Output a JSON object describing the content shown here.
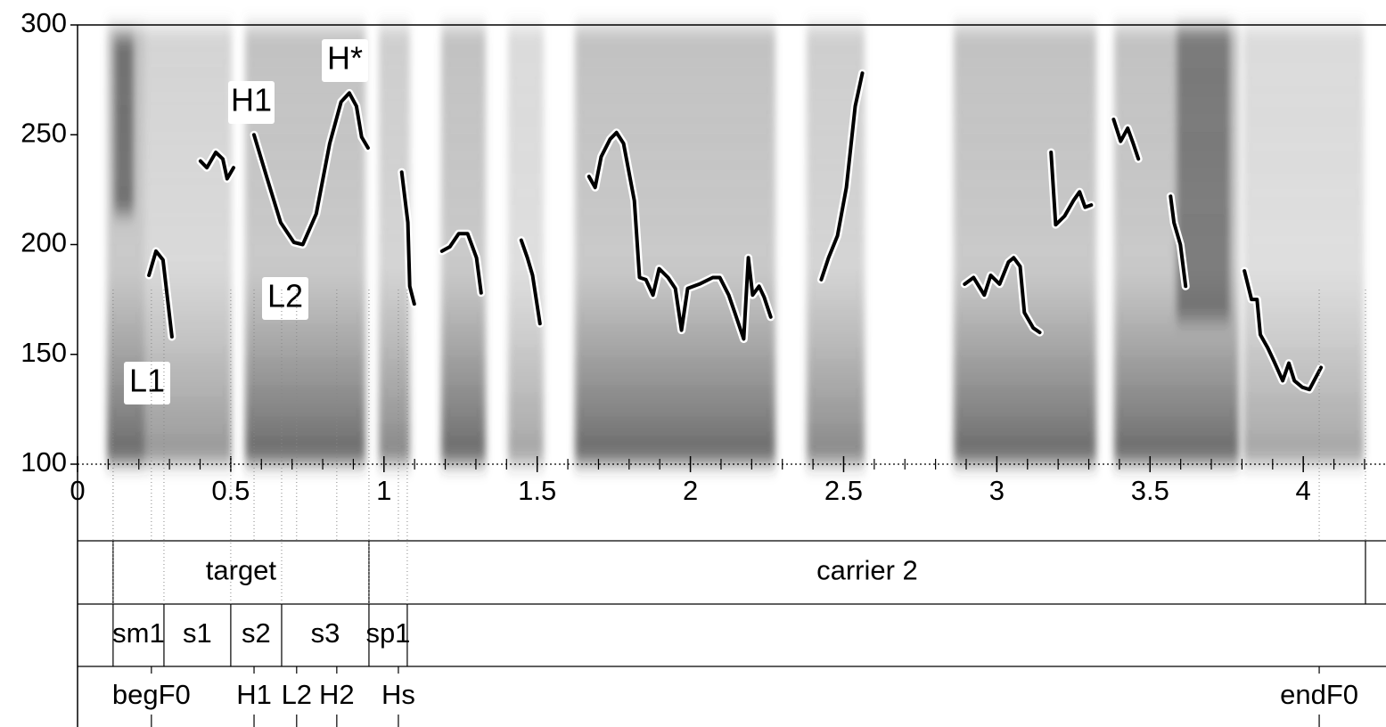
{
  "chart_data": {
    "type": "line",
    "color": "#000000",
    "xlim": [
      0,
      4.27
    ],
    "ylim": [
      100,
      300
    ],
    "xticks": [
      0,
      0.5,
      1,
      1.5,
      2,
      2.5,
      3,
      3.5,
      4
    ],
    "xminorticks": [
      0.1,
      0.2,
      0.3,
      0.4,
      0.6,
      0.7,
      0.8,
      0.9,
      1.1,
      1.2,
      1.3,
      1.4,
      1.6,
      1.7,
      1.8,
      1.9,
      2.1,
      2.2,
      2.3,
      2.4,
      2.6,
      2.7,
      2.8,
      2.9,
      3.1,
      3.2,
      3.3,
      3.4,
      3.6,
      3.7,
      3.8,
      3.9,
      4.1,
      4.2
    ],
    "yticks": [
      100,
      150,
      200,
      250,
      300
    ],
    "x": [
      0.233,
      0.256,
      0.279,
      0.308,
      null,
      0.401,
      0.422,
      0.451,
      0.474,
      0.488,
      0.509,
      null,
      0.576,
      0.619,
      0.663,
      0.706,
      0.735,
      0.779,
      0.823,
      0.86,
      0.887,
      0.91,
      0.927,
      0.948,
      null,
      1.058,
      1.078,
      1.084,
      1.099,
      null,
      1.189,
      1.215,
      1.244,
      1.273,
      1.302,
      1.317,
      null,
      1.448,
      1.468,
      1.485,
      1.509,
      null,
      1.669,
      1.689,
      1.709,
      1.738,
      1.759,
      1.782,
      1.817,
      1.834,
      1.855,
      1.878,
      1.898,
      1.927,
      1.951,
      1.971,
      1.991,
      2.029,
      2.073,
      2.096,
      2.125,
      2.145,
      2.174,
      2.189,
      2.203,
      2.224,
      2.241,
      2.262,
      null,
      2.427,
      2.451,
      2.48,
      2.509,
      2.538,
      2.561,
      null,
      2.895,
      2.924,
      2.959,
      2.98,
      3.009,
      3.038,
      3.055,
      3.076,
      3.09,
      3.119,
      3.14,
      null,
      3.177,
      3.192,
      3.221,
      3.25,
      3.27,
      3.288,
      3.308,
      null,
      3.381,
      3.404,
      3.427,
      3.445,
      3.462,
      null,
      3.567,
      3.578,
      3.599,
      3.616,
      null,
      3.808,
      3.831,
      3.849,
      3.86,
      3.884,
      3.904,
      3.933,
      3.953,
      3.971,
      3.997,
      4.02,
      4.058
    ],
    "values": [
      186,
      197,
      193,
      158,
      null,
      238,
      235,
      242,
      239,
      230,
      235,
      null,
      250,
      230,
      210,
      201,
      200,
      214,
      246,
      265,
      269,
      263,
      249,
      244,
      null,
      233,
      210,
      181,
      173,
      null,
      197,
      199,
      205,
      205,
      194,
      178,
      null,
      202,
      194,
      186,
      164,
      null,
      231,
      226,
      240,
      248,
      251,
      246,
      220,
      185,
      184,
      177,
      189,
      185,
      180,
      161,
      180,
      182,
      185,
      185,
      177,
      169,
      157,
      194,
      177,
      181,
      176,
      167,
      null,
      184,
      194,
      204,
      226,
      263,
      278,
      null,
      182,
      185,
      177,
      186,
      182,
      192,
      194,
      190,
      169,
      162,
      160,
      null,
      242,
      209,
      213,
      220,
      224,
      217,
      218,
      null,
      257,
      247,
      253,
      246,
      239,
      null,
      222,
      210,
      200,
      181,
      null,
      188,
      175,
      175,
      159,
      153,
      147,
      138,
      146,
      138,
      135,
      134,
      144
    ],
    "annotations": [
      "L1",
      "H1",
      "L2",
      "H*"
    ],
    "tiers": [
      {
        "type": "interval",
        "boundaries": [
          0.116,
          0.951,
          4.203
        ],
        "labels": [
          "target",
          "carrier 2"
        ]
      },
      {
        "type": "interval",
        "boundaries": [
          0.116,
          0.282,
          0.5,
          0.666,
          0.951,
          1.076
        ],
        "labels": [
          "sm1",
          "s1",
          "s2",
          "s3",
          "sp1"
        ]
      },
      {
        "type": "point",
        "times": [
          0.241,
          0.576,
          0.715,
          0.846,
          1.047,
          4.052
        ],
        "labels": [
          "begF0",
          "H1",
          "L2",
          "H2",
          "Hs",
          "endF0"
        ]
      }
    ]
  }
}
